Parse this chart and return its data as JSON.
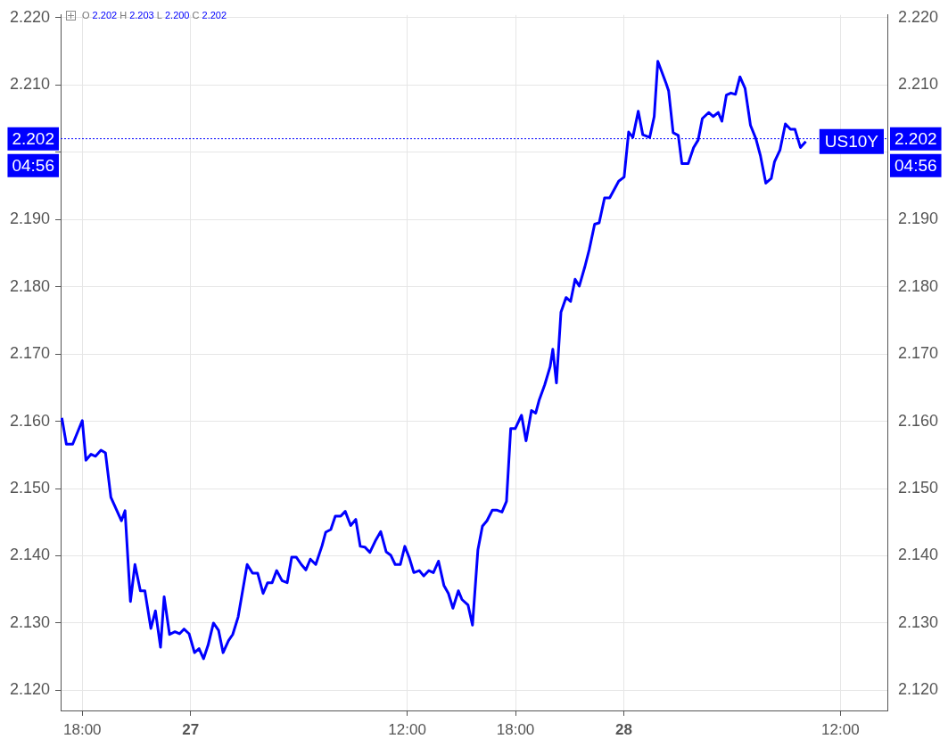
{
  "chart_data": {
    "type": "line",
    "x": [
      "--03-26T16:52",
      "--03-26T17:07",
      "--03-26T17:28",
      "--03-26T18:00",
      "--03-26T18:12",
      "--03-26T18:29",
      "--03-26T18:44",
      "--03-26T19:02",
      "--03-26T19:17",
      "--03-26T19:35",
      "--03-26T20:10",
      "--03-26T20:22",
      "--03-26T20:40",
      "--03-26T20:55",
      "--03-26T21:13",
      "--03-26T21:28",
      "--03-26T21:48",
      "--03-26T22:03",
      "--03-26T22:20",
      "--03-26T22:32",
      "--03-26T22:50",
      "--03-26T23:08",
      "--03-26T23:23",
      "--03-26T23:38",
      "--03-26T23:55",
      "--03-27T00:13",
      "--03-27T00:28",
      "--03-27T00:43",
      "--03-27T00:58",
      "--03-27T01:16",
      "--03-27T01:33",
      "--03-27T01:48",
      "--03-27T02:06",
      "--03-27T02:20",
      "--03-27T02:38",
      "--03-27T03:08",
      "--03-27T03:26",
      "--03-27T03:43",
      "--03-27T04:01",
      "--03-27T04:16",
      "--03-27T04:31",
      "--03-27T04:46",
      "--03-27T05:04",
      "--03-27T05:21",
      "--03-27T05:36",
      "--03-27T05:51",
      "--03-27T06:08",
      "--03-27T06:23",
      "--03-27T06:38",
      "--03-27T06:56",
      "--03-27T07:17",
      "--03-27T07:29",
      "--03-27T07:46",
      "--03-27T08:01",
      "--03-27T08:19",
      "--03-27T08:34",
      "--03-27T08:52",
      "--03-27T09:09",
      "--03-27T09:24",
      "--03-27T09:39",
      "--03-27T09:56",
      "--03-27T10:14",
      "--03-27T10:32",
      "--03-27T10:50",
      "--03-27T11:05",
      "--03-27T11:20",
      "--03-27T11:37",
      "--03-27T11:52",
      "--03-27T12:07",
      "--03-27T12:22",
      "--03-27T12:40",
      "--03-27T12:55",
      "--03-27T13:12",
      "--03-27T13:27",
      "--03-27T13:44",
      "--03-27T14:02",
      "--03-27T14:17",
      "--03-27T14:32",
      "--03-27T14:50",
      "--03-27T15:02",
      "--03-27T15:22",
      "--03-27T15:37",
      "--03-27T15:55",
      "--03-27T16:10",
      "--03-27T16:25",
      "--03-27T16:43",
      "--03-27T16:57",
      "--03-27T17:15",
      "--03-27T17:30",
      "--03-27T17:44",
      "--03-27T17:59",
      "--03-27T18:20",
      "--03-27T18:35",
      "--03-27T18:53",
      "--03-27T19:07",
      "--03-27T19:19",
      "--03-27T19:37",
      "--03-27T19:55",
      "--03-27T20:04",
      "--03-27T20:16",
      "--03-27T20:31",
      "--03-27T20:48",
      "--03-27T21:03",
      "--03-27T21:18",
      "--03-27T21:32",
      "--03-27T21:50",
      "--03-27T22:05",
      "--03-27T22:23",
      "--03-27T22:38",
      "--03-27T22:56",
      "--03-27T23:13",
      "--03-27T23:31",
      "--03-27T23:43",
      "--03-28T00:01",
      "--03-28T00:16",
      "--03-28T00:30",
      "--03-28T00:48",
      "--03-28T01:03",
      "--03-28T01:26",
      "--03-28T01:41",
      "--03-28T01:53",
      "--03-28T02:05",
      "--03-28T02:20",
      "--03-28T02:29",
      "--03-28T02:44",
      "--03-28T03:01",
      "--03-28T03:13",
      "--03-28T03:34",
      "--03-28T03:52",
      "--03-28T04:07",
      "--03-28T04:21",
      "--03-28T04:42",
      "--03-28T04:57",
      "--03-28T05:14",
      "--03-28T05:26",
      "--03-28T05:41",
      "--03-28T05:56",
      "--03-28T06:11",
      "--03-28T06:26",
      "--03-28T06:43",
      "--03-28T07:01",
      "--03-28T07:19",
      "--03-28T07:34",
      "--03-28T07:52",
      "--03-28T08:10",
      "--03-28T08:21",
      "--03-28T08:39",
      "--03-28T08:57",
      "--03-28T09:14",
      "--03-28T09:29",
      "--03-28T09:47",
      "--03-28T10:05"
    ],
    "series": [
      {
        "name": "US10Y",
        "color": "#0000ff",
        "values": [
          2.1605,
          2.1566,
          2.1566,
          2.1601,
          2.1542,
          2.1551,
          2.1548,
          2.1557,
          2.1553,
          2.1487,
          2.1452,
          2.1467,
          2.1332,
          2.1387,
          2.1348,
          2.1348,
          2.1292,
          2.1318,
          2.1264,
          2.1339,
          2.1283,
          2.1287,
          2.1284,
          2.1291,
          2.1284,
          2.1256,
          2.1262,
          2.1247,
          2.1267,
          2.13,
          2.1289,
          2.1256,
          2.1274,
          2.1283,
          2.1309,
          2.1387,
          2.1374,
          2.1374,
          2.1344,
          2.136,
          2.136,
          2.1378,
          2.1363,
          2.136,
          2.1398,
          2.1398,
          2.1387,
          2.1379,
          2.1395,
          2.1387,
          2.1415,
          2.1435,
          2.1439,
          2.1459,
          2.1459,
          2.1466,
          2.1445,
          2.1454,
          2.1414,
          2.1413,
          2.1405,
          2.1422,
          2.1436,
          2.1406,
          2.1401,
          2.1387,
          2.1387,
          2.1414,
          2.1397,
          2.1375,
          2.1378,
          2.137,
          2.1378,
          2.1375,
          2.1392,
          2.1356,
          2.1344,
          2.1322,
          2.1348,
          2.1335,
          2.1327,
          2.1297,
          2.1409,
          2.1444,
          2.1452,
          2.1468,
          2.1468,
          2.1465,
          2.1481,
          2.1589,
          2.1589,
          2.1609,
          2.1571,
          2.1616,
          2.1612,
          2.1632,
          2.1654,
          2.1681,
          2.1707,
          2.1657,
          2.1762,
          2.1784,
          2.1778,
          2.1811,
          2.1801,
          2.1829,
          2.1855,
          2.1893,
          2.1895,
          2.1932,
          2.1932,
          2.1947,
          2.1957,
          2.1963,
          2.203,
          2.2022,
          2.2061,
          2.2026,
          2.2022,
          2.2053,
          2.2135,
          2.2121,
          2.2103,
          2.2091,
          2.2029,
          2.2025,
          2.1983,
          2.1983,
          2.2007,
          2.2018,
          2.205,
          2.2059,
          2.2053,
          2.2059,
          2.2046,
          2.2085,
          2.2088,
          2.2086,
          2.2112,
          2.2095,
          2.204,
          2.202,
          2.1995,
          2.1954,
          2.1961,
          2.1986,
          2.2003,
          2.2042,
          2.2034,
          2.2034,
          2.2007,
          2.2016
        ]
      }
    ],
    "xlim": [
      "--03-26T16:48",
      "--03-28T14:36"
    ],
    "xticks": [
      {
        "value": "--03-26T18:00",
        "label": "18:00"
      },
      {
        "value": "--03-27",
        "label": "27"
      },
      {
        "value": "--03-27T12:00",
        "label": "12:00"
      },
      {
        "value": "--03-27T18:00",
        "label": "18:00"
      },
      {
        "value": "--03-28",
        "label": "28"
      },
      {
        "value": "--03-28T12:00",
        "label": "12:00"
      }
    ],
    "ylim": [
      2.117,
      2.2204
    ],
    "yticks": [
      {
        "value": 2.12,
        "label": "2.120"
      },
      {
        "value": 2.13,
        "label": "2.130"
      },
      {
        "value": 2.14,
        "label": "2.140"
      },
      {
        "value": 2.15,
        "label": "2.150"
      },
      {
        "value": 2.16,
        "label": "2.160"
      },
      {
        "value": 2.17,
        "label": "2.170"
      },
      {
        "value": 2.18,
        "label": "2.180"
      },
      {
        "value": 2.19,
        "label": "2.190"
      },
      {
        "value": 2.2,
        "label": null
      },
      {
        "value": 2.21,
        "label": "2.210"
      },
      {
        "value": 2.22,
        "label": "2.220"
      }
    ],
    "y2lim": [
      2.117,
      2.2204
    ],
    "y2ticks": [
      {
        "value": 2.12,
        "label": "2.120"
      },
      {
        "value": 2.13,
        "label": "2.130"
      },
      {
        "value": 2.14,
        "label": "2.140"
      },
      {
        "value": 2.15,
        "label": "2.150"
      },
      {
        "value": 2.16,
        "label": "2.160"
      },
      {
        "value": 2.17,
        "label": "2.170"
      },
      {
        "value": 2.18,
        "label": "2.180"
      },
      {
        "value": 2.19,
        "label": "2.190"
      },
      {
        "value": 2.2,
        "label": null
      },
      {
        "value": 2.21,
        "label": "2.210"
      },
      {
        "value": 2.22,
        "label": "2.220"
      }
    ],
    "ref_lines": [
      {
        "axis": "y",
        "value": 2.202,
        "color": "#0000ff",
        "line_style": "dotted"
      }
    ],
    "annotations": [
      "O 2.202 H 2.203 L 2.200 C 2.202",
      "2.202",
      "04:56"
    ],
    "grid": true,
    "legend": "right",
    "marker": "none",
    "line_style": "solid"
  }
}
